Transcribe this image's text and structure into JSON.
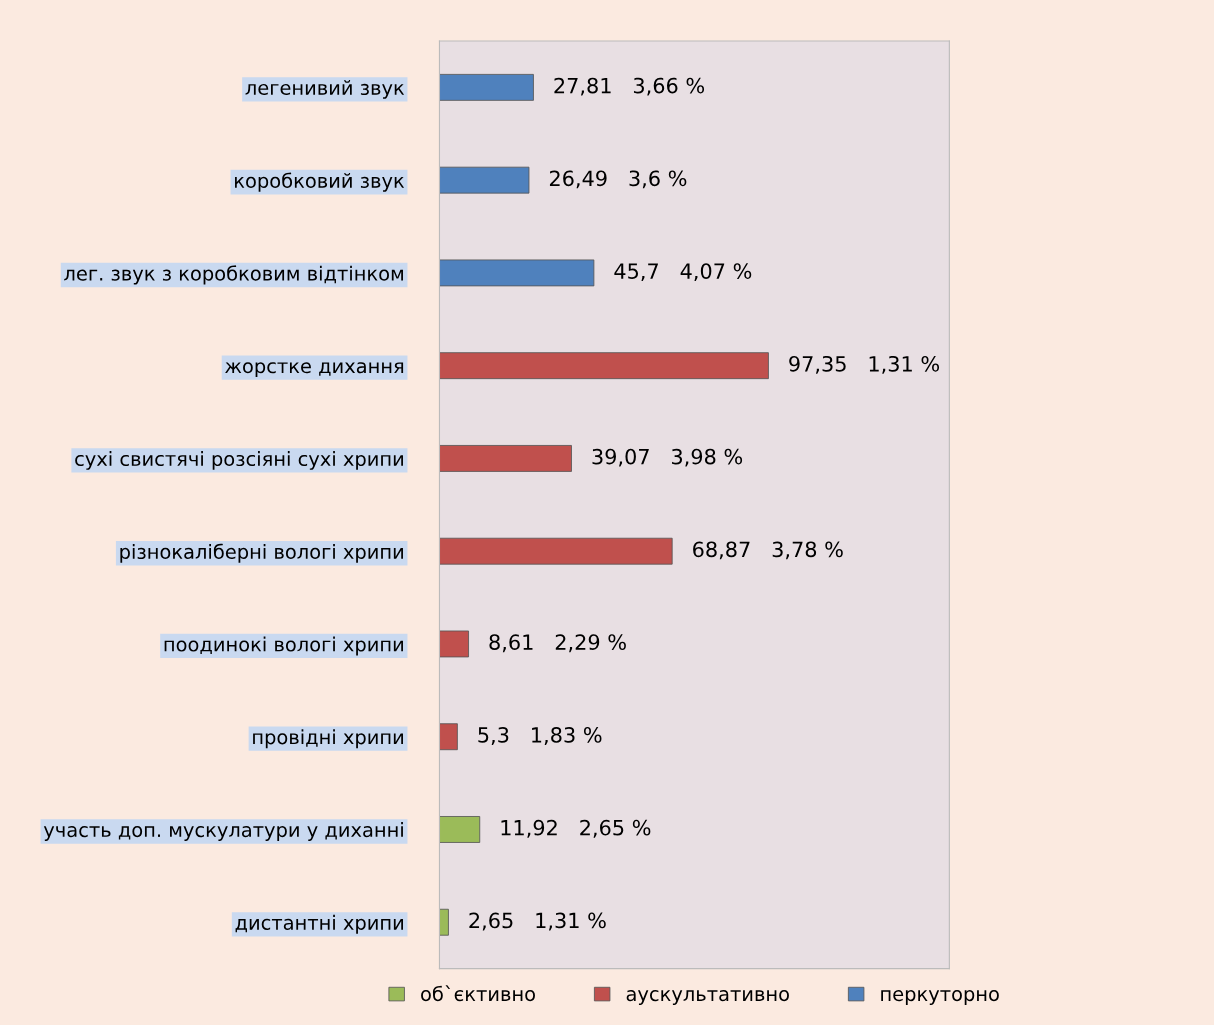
{
  "chart_data": {
    "type": "bar",
    "orientation": "horizontal",
    "stacked": true,
    "legend": "bottom",
    "categories": [
      "легенивий звук",
      "коробковий звук",
      "лег. звук з коробковим відтінком",
      "жорстке дихання",
      "сухі свистячі розсіяні сухі хрипи",
      "різнокаліберні вологі хрипи",
      "поодинокі вологі хрипи",
      "провідні хрипи",
      "участь доп. мускулатури у диханні",
      "дистантні хрипи"
    ],
    "series": [
      {
        "name": "об`єктивно",
        "color": "#9bbb59",
        "values": [
          null,
          null,
          null,
          null,
          null,
          null,
          null,
          null,
          11.92,
          2.65
        ],
        "value_labels": [
          null,
          null,
          null,
          null,
          null,
          null,
          null,
          null,
          "11,92   2,65 %",
          "2,65   1,31 %"
        ]
      },
      {
        "name": "аускультативно",
        "color": "#c0504d",
        "values": [
          null,
          null,
          null,
          97.35,
          39.07,
          68.87,
          8.61,
          5.3,
          null,
          null
        ],
        "value_labels": [
          null,
          null,
          null,
          "97,35   1,31 %",
          "39,07   3,98 %",
          "68,87   3,78 %",
          "8,61   2,29 %",
          "5,3   1,83 %",
          null,
          null
        ]
      },
      {
        "name": "перкуторно",
        "color": "#4f81bd",
        "values": [
          27.81,
          26.49,
          45.7,
          null,
          null,
          null,
          null,
          null,
          null,
          null
        ],
        "value_labels": [
          "27,81   3,66 %",
          "26,49   3,6 %",
          "45,7   4,07 %",
          null,
          null,
          null,
          null,
          null,
          null,
          null
        ]
      }
    ]
  }
}
